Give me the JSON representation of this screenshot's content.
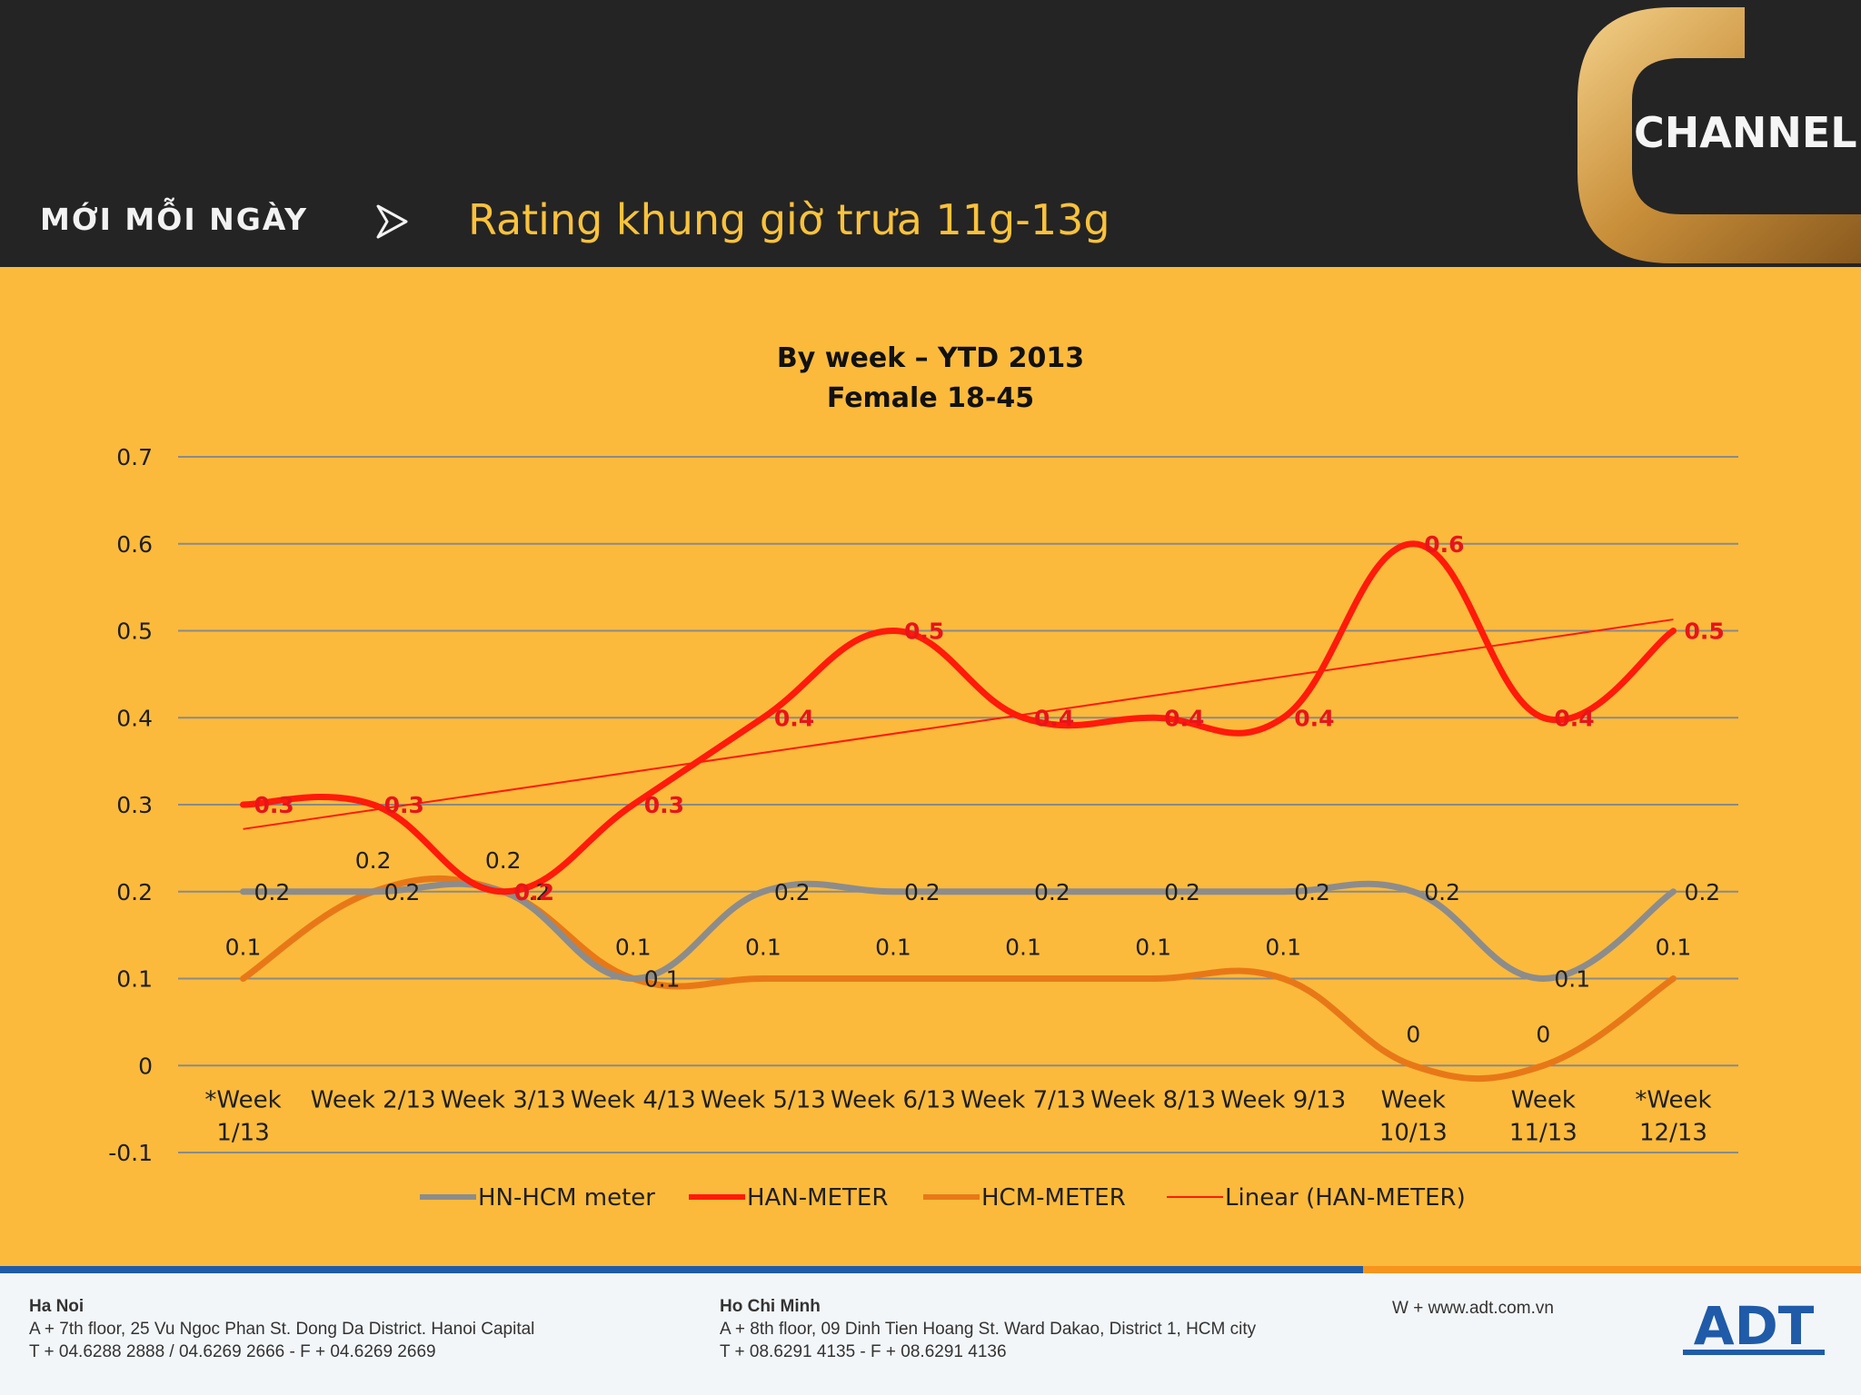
{
  "header": {
    "tagline": "MỚI MỖI NGÀY",
    "title": "Rating khung giờ trưa 11g-13g",
    "logo_text": "CHANNEL",
    "bg_color": "#242424",
    "title_color": "#F9C23C"
  },
  "chart_data": {
    "type": "line",
    "title_line1": "By week – YTD 2013",
    "title_line2": "Female 18-45",
    "categories": [
      [
        "*Week",
        "1/13"
      ],
      [
        "Week 2/13"
      ],
      [
        "Week 3/13"
      ],
      [
        "Week 4/13"
      ],
      [
        "Week 5/13"
      ],
      [
        "Week 6/13"
      ],
      [
        "Week 7/13"
      ],
      [
        "Week 8/13"
      ],
      [
        "Week 9/13"
      ],
      [
        "Week",
        "10/13"
      ],
      [
        "Week",
        "11/13"
      ],
      [
        "*Week",
        "12/13"
      ]
    ],
    "ylim": [
      -0.1,
      0.7
    ],
    "yticks": [
      "-0.1",
      "0",
      "0.1",
      "0.2",
      "0.3",
      "0.4",
      "0.5",
      "0.6",
      "0.7"
    ],
    "series": [
      {
        "name": "HN-HCM meter",
        "color": "#8C8C8C",
        "values": [
          0.2,
          0.2,
          0.2,
          0.1,
          0.2,
          0.2,
          0.2,
          0.2,
          0.2,
          0.2,
          0.1,
          0.2
        ],
        "labels": [
          "0.2",
          "0.2",
          "0.2",
          "0.1",
          "0.2",
          "0.2",
          "0.2",
          "0.2",
          "0.2",
          "0.2",
          "0.1",
          "0.2"
        ],
        "label_color": "#1f1f1f"
      },
      {
        "name": "HAN-METER",
        "color": "#FF1A0A",
        "values": [
          0.3,
          0.3,
          0.2,
          0.3,
          0.4,
          0.5,
          0.4,
          0.4,
          0.4,
          0.6,
          0.4,
          0.5
        ],
        "labels": [
          "0.3",
          "0.3",
          "0.2",
          "0.3",
          "0.4",
          "0.5",
          "0.4",
          "0.4",
          "0.4",
          "0.6",
          "0.4",
          "0.5"
        ],
        "label_color": "#E8141A"
      },
      {
        "name": "HCM-METER",
        "color": "#E87817",
        "values": [
          0.1,
          0.2,
          0.2,
          0.1,
          0.1,
          0.1,
          0.1,
          0.1,
          0.1,
          0,
          0,
          0.1
        ],
        "labels": [
          "0.1",
          "0.2",
          "0.2",
          "0.1",
          "0.1",
          "0.1",
          "0.1",
          "0.1",
          "0.1",
          "0",
          "0",
          "0.1"
        ],
        "label_color": "#1f1f1f"
      }
    ],
    "trendline": {
      "name": "Linear (HAN-METER)",
      "color": "#FF1A0A",
      "start": 0.272,
      "end": 0.513
    },
    "legend": [
      "HN-HCM meter",
      "HAN-METER",
      "HCM-METER",
      "Linear (HAN-METER)"
    ],
    "legend_position": "bottom"
  },
  "footer": {
    "hanoi": {
      "city": "Ha Noi",
      "address": "A + 7th floor, 25 Vu Ngoc Phan St. Dong Da District. Hanoi Capital",
      "phone": "T + 04.6288 2888 / 04.6269 2666 - F + 04.6269 2669"
    },
    "hcm": {
      "city": "Ho Chi Minh",
      "address": "A + 8th floor, 09 Dinh Tien Hoang St. Ward Dakao, District 1, HCM city",
      "phone": "T + 08.6291 4135 - F + 08.6291 4136"
    },
    "web": "W + www.adt.com.vn",
    "brand": "ADT",
    "brand_color": "#1F5BA8"
  }
}
